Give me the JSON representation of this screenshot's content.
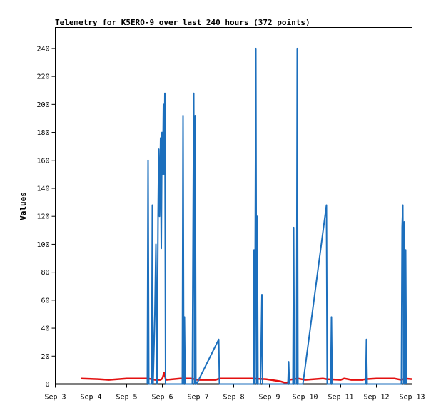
{
  "chart_data": {
    "type": "line",
    "title": "Telemetry for K5ERO-9 over last 240 hours (372 points)",
    "xlabel": "",
    "ylabel": "Values",
    "xlim": [
      3.0,
      13.0
    ],
    "ylim": [
      0,
      255
    ],
    "x_unit": "days of September",
    "grid": false,
    "x_tick_labels": [
      "Sep 3",
      "Sep 4",
      "Sep 5",
      "Sep 6",
      "Sep 7",
      "Sep 8",
      "Sep 9",
      "Sep 10",
      "Sep 11",
      "Sep 12",
      "Sep 13"
    ],
    "y_tick_labels": [
      "0",
      "20",
      "40",
      "60",
      "80",
      "100",
      "120",
      "140",
      "160",
      "180",
      "200",
      "220",
      "240"
    ],
    "colors": {
      "blue": "#1c6fbd",
      "red": "#e31010",
      "axis": "#000000"
    },
    "series": [
      {
        "color": "#e31010",
        "x": [
          3.72,
          4.2,
          4.5,
          5.0,
          5.6,
          5.8,
          5.85,
          5.95,
          6.0,
          6.05,
          6.1,
          6.5,
          6.8,
          7.0,
          7.5,
          7.6,
          8.5,
          8.9,
          9.3,
          9.5,
          9.55,
          9.8,
          10.0,
          10.5,
          10.6,
          11.0,
          11.1,
          11.2,
          11.3,
          11.6,
          11.7,
          12.0,
          12.5,
          12.7,
          12.8,
          13.0
        ],
        "values": [
          4,
          3.5,
          3,
          4,
          4,
          3,
          3,
          3,
          4,
          8,
          3,
          4,
          4,
          3,
          3,
          4,
          4,
          3.5,
          2,
          0.5,
          3,
          4,
          3,
          4,
          3.5,
          3,
          4,
          3.5,
          3,
          3,
          3.5,
          4,
          4,
          3,
          4,
          3.5
        ]
      },
      {
        "color": "#1c6fbd",
        "x": [
          5.58,
          5.6,
          5.62,
          5.7,
          5.72,
          5.74,
          5.76,
          5.79,
          5.82,
          5.85,
          5.88,
          5.9,
          5.92,
          5.95,
          5.97,
          5.99,
          6.01,
          6.03,
          6.05,
          6.07,
          6.09,
          6.11,
          6.56,
          6.58,
          6.6,
          6.62,
          6.64,
          6.66,
          6.84,
          6.86,
          6.88,
          6.9,
          6.92,
          6.94,
          6.96,
          7.58,
          7.6,
          7.62,
          8.55,
          8.57,
          8.59,
          8.62,
          8.64,
          8.66,
          8.68,
          8.7,
          8.72,
          8.75,
          8.77,
          8.79,
          8.81,
          8.83,
          9.52,
          9.54,
          9.56,
          9.66,
          9.68,
          9.7,
          9.76,
          9.78,
          9.8,
          9.92,
          9.94,
          10.6,
          10.62,
          10.72,
          10.74,
          10.76,
          11.7,
          11.72,
          11.74,
          12.7,
          12.72,
          12.74,
          12.76,
          12.78,
          12.8,
          12.82,
          12.84
        ],
        "values": [
          0,
          160,
          0,
          0,
          128,
          0,
          20,
          50,
          100,
          0,
          120,
          168,
          120,
          176,
          97,
          180,
          150,
          200,
          150,
          208,
          0,
          0,
          0,
          192,
          0,
          48,
          0,
          0,
          0,
          104,
          208,
          0,
          192,
          0,
          0,
          32,
          0,
          0,
          0,
          96,
          0,
          240,
          0,
          120,
          0,
          0,
          0,
          0,
          30,
          64,
          0,
          0,
          0,
          16,
          0,
          0,
          112,
          0,
          0,
          240,
          0,
          0,
          0,
          128,
          0,
          0,
          48,
          0,
          0,
          32,
          0,
          0,
          112,
          128,
          0,
          116,
          0,
          96,
          0
        ]
      }
    ]
  }
}
